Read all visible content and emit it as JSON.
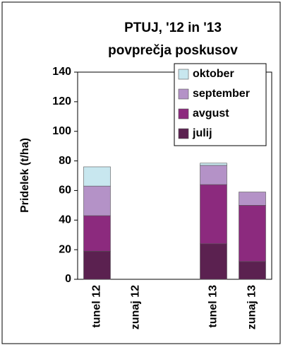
{
  "chart_data": {
    "type": "stacked_bar",
    "title": "PTUJ, '12 in '13",
    "subtitle": "povprečja poskusov",
    "y_label": "Pridelek (t/ha)",
    "categories": [
      "tunel 12",
      "zunaj 12",
      null,
      "tunel 13",
      "zunaj 13"
    ],
    "series": [
      {
        "name": "julij",
        "color": "#5b2150",
        "values": [
          19,
          0,
          null,
          24,
          12
        ]
      },
      {
        "name": "avgust",
        "color": "#8c2a7e",
        "values": [
          24,
          0,
          null,
          40,
          38
        ]
      },
      {
        "name": "september",
        "color": "#b492c7",
        "values": [
          20,
          0,
          null,
          13,
          9
        ]
      },
      {
        "name": "oktober",
        "color": "#c8e7ef",
        "values": [
          13,
          0,
          null,
          1.5,
          0
        ]
      }
    ],
    "ylim": [
      0,
      140
    ],
    "yticks": [
      0,
      20,
      40,
      60,
      80,
      100,
      120,
      140
    ],
    "legend": "upper right"
  }
}
